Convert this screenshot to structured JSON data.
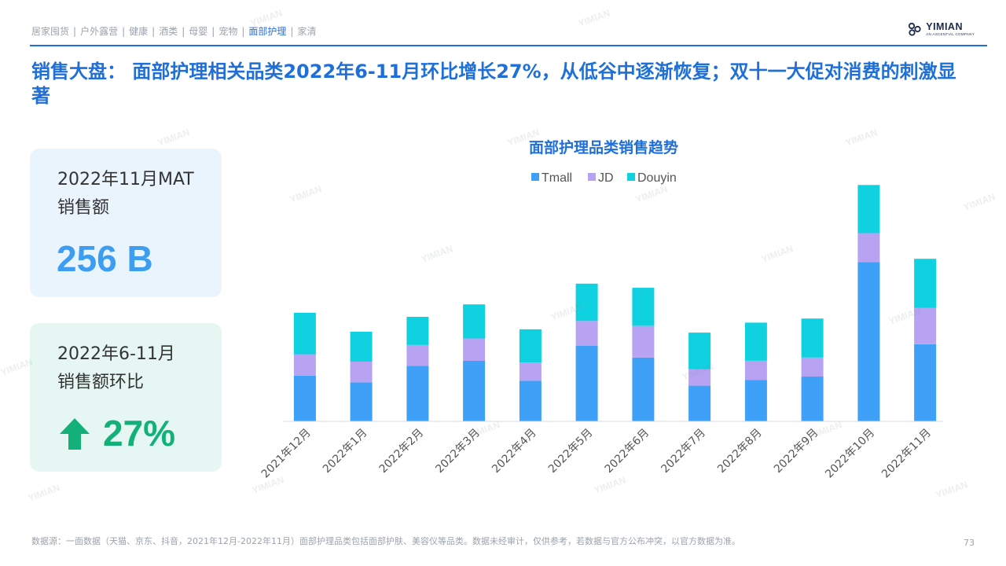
{
  "nav": {
    "items": [
      {
        "label": "居家囤货",
        "active": false
      },
      {
        "label": "户外露营",
        "active": false
      },
      {
        "label": "健康",
        "active": false
      },
      {
        "label": "酒类",
        "active": false
      },
      {
        "label": "母婴",
        "active": false
      },
      {
        "label": "宠物",
        "active": false
      },
      {
        "label": "面部护理",
        "active": true
      },
      {
        "label": "家清",
        "active": false
      }
    ],
    "separator": "|"
  },
  "logo": {
    "brand": "YIMIAN",
    "tagline": "AN ASCENTIAL COMPANY"
  },
  "headline": "销售大盘： 面部护理相关品类2022年6-11月环比增长27%，从低谷中逐渐恢复；双十一大促对消费的刺激显著",
  "cards": {
    "mat": {
      "label_line1": "2022年11月MAT",
      "label_line2": "销售额",
      "value": "256 B"
    },
    "growth": {
      "label_line1": "2022年6-11月",
      "label_line2": "销售额环比",
      "value": "27%",
      "direction": "up"
    }
  },
  "chart_data": {
    "type": "bar",
    "stacked": true,
    "title": "面部护理品类销售趋势",
    "categories": [
      "2021年12月",
      "2022年1月",
      "2022年2月",
      "2022年3月",
      "2022年4月",
      "2022年5月",
      "2022年6月",
      "2022年7月",
      "2022年8月",
      "2022年9月",
      "2022年10月",
      "2022年11月"
    ],
    "series": [
      {
        "name": "Tmall",
        "color": "#3fa0f8",
        "values": [
          55,
          47,
          67,
          73,
          49,
          91,
          77,
          43,
          50,
          54,
          192,
          93
        ]
      },
      {
        "name": "JD",
        "color": "#b8a3f2",
        "values": [
          26,
          25,
          25,
          27,
          22,
          30,
          38,
          20,
          23,
          23,
          35,
          44
        ]
      },
      {
        "name": "Douyin",
        "color": "#0fd1e0",
        "values": [
          50,
          36,
          34,
          41,
          40,
          45,
          46,
          44,
          46,
          47,
          58,
          59
        ]
      }
    ],
    "legend_position": "top-center",
    "ylim": [
      0,
      290
    ],
    "y_axis_visible": false,
    "grid": false
  },
  "footnote": "数据源：一面数据（天猫、京东、抖音，2021年12月-2022年11月）面部护理品类包括面部护肤、美容仪等品类。数据未经审计，仅供参考，若数据与官方公布冲突，以官方数据为准。",
  "page_number": "73",
  "colors": {
    "accent": "#1f6fd9",
    "mat_value": "#3d9df1",
    "growth_value": "#13b07a"
  }
}
